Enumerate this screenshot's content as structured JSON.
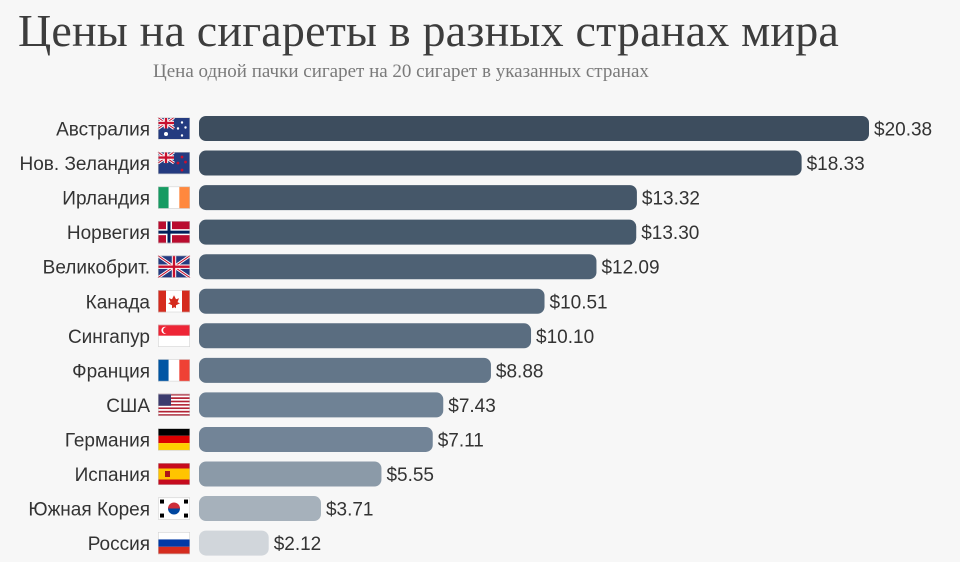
{
  "chart_data": {
    "type": "bar",
    "orientation": "horizontal",
    "title": "Цены на сигареты в разных странах мира",
    "subtitle": "Цена одной пачки сигарет на 20 сигарет в указанных странах",
    "categories": [
      "Австралия",
      "Нов. Зеландия",
      "Ирландия",
      "Норвегия",
      "Великобрит.",
      "Канада",
      "Сингапур",
      "Франция",
      "США",
      "Германия",
      "Испания",
      "Южная Корея",
      "Россия"
    ],
    "values": [
      20.38,
      18.33,
      13.32,
      13.3,
      12.09,
      10.51,
      10.1,
      8.88,
      7.43,
      7.11,
      5.55,
      3.71,
      2.12
    ],
    "value_labels": [
      "$20.38",
      "$18.33",
      "$13.32",
      "$13.30",
      "$12.09",
      "$10.51",
      "$10.10",
      "$8.88",
      "$7.43",
      "$7.11",
      "$5.55",
      "$3.71",
      "$2.12"
    ],
    "flag_icons": [
      "flag-australia-icon",
      "flag-new-zealand-icon",
      "flag-ireland-icon",
      "flag-norway-icon",
      "flag-uk-icon",
      "flag-canada-icon",
      "flag-singapore-icon",
      "flag-france-icon",
      "flag-usa-icon",
      "flag-germany-icon",
      "flag-spain-icon",
      "flag-south-korea-icon",
      "flag-russia-icon"
    ],
    "bar_colors": [
      "#3d4d5e",
      "#3f5062",
      "#455769",
      "#475a6c",
      "#4e6174",
      "#56697c",
      "#5a6d80",
      "#637689",
      "#6f8295",
      "#728497",
      "#8b9aa8",
      "#a6b1bb",
      "#d1d6db"
    ],
    "xlim": [
      0,
      20.38
    ],
    "grid": false,
    "legend": "none"
  }
}
